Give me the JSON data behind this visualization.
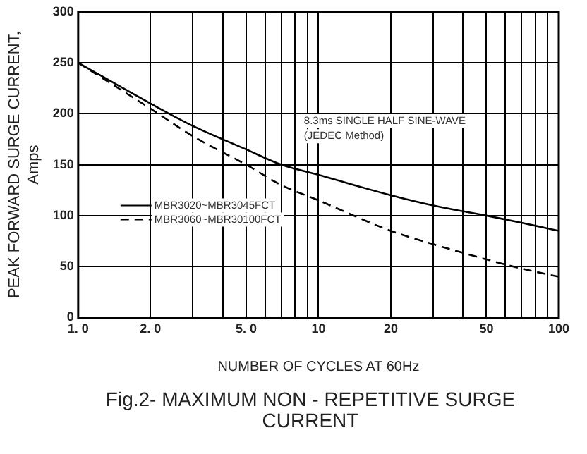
{
  "chart_data": {
    "type": "line",
    "title": "Fig.2- MAXIMUM NON - REPETITIVE SURGE CURRENT",
    "xlabel": "NUMBER OF CYCLES AT 60Hz",
    "ylabel": "PEAK FORWARD SURGE CURRENT, Amps",
    "annotations": [
      "8.3ms SINGLE HALF SINE-WAVE",
      "(JEDEC Method)"
    ],
    "x": [
      1,
      2,
      3,
      5,
      7,
      10,
      20,
      30,
      50,
      70,
      100
    ],
    "series": [
      {
        "name": "MBR3020~MBR3045FCT",
        "color": "#000000",
        "line_style": "solid",
        "values": [
          250,
          210,
          188,
          165,
          150,
          140,
          120,
          110,
          100,
          93,
          85
        ]
      },
      {
        "name": "MBR3060~MBR30100FCT",
        "color": "#000000",
        "line_style": "dashed",
        "values": [
          250,
          205,
          178,
          150,
          130,
          115,
          85,
          72,
          57,
          48,
          40
        ]
      }
    ],
    "log": "x",
    "xlim": [
      1,
      100
    ],
    "xticks": [
      {
        "value": 1,
        "label": "1. 0"
      },
      {
        "value": 2,
        "label": "2. 0"
      },
      {
        "value": 3,
        "label": null
      },
      {
        "value": 4,
        "label": null
      },
      {
        "value": 5,
        "label": "5. 0"
      },
      {
        "value": 6,
        "label": null
      },
      {
        "value": 7,
        "label": null
      },
      {
        "value": 8,
        "label": null
      },
      {
        "value": 9,
        "label": null
      },
      10,
      20,
      {
        "value": 30,
        "label": null
      },
      {
        "value": 40,
        "label": null
      },
      50,
      {
        "value": 60,
        "label": null
      },
      {
        "value": 70,
        "label": null
      },
      {
        "value": 80,
        "label": null
      },
      {
        "value": 90,
        "label": null
      },
      100
    ],
    "ylim": [
      0,
      300
    ],
    "yticks": [
      0,
      50,
      100,
      150,
      200,
      250,
      300
    ],
    "grid": true,
    "legend": "left",
    "marker": "none"
  }
}
